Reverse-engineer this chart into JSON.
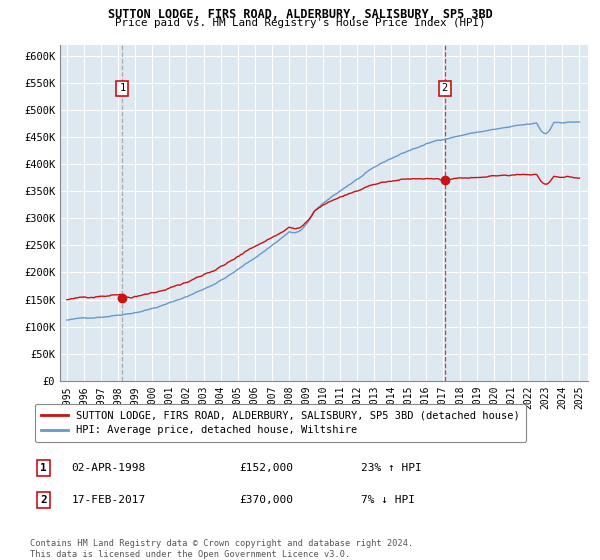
{
  "title": "SUTTON LODGE, FIRS ROAD, ALDERBURY, SALISBURY, SP5 3BD",
  "subtitle": "Price paid vs. HM Land Registry's House Price Index (HPI)",
  "ylim": [
    0,
    620000
  ],
  "yticks": [
    0,
    50000,
    100000,
    150000,
    200000,
    250000,
    300000,
    350000,
    400000,
    450000,
    500000,
    550000,
    600000
  ],
  "ytick_labels": [
    "£0",
    "£50K",
    "£100K",
    "£150K",
    "£200K",
    "£250K",
    "£300K",
    "£350K",
    "£400K",
    "£450K",
    "£500K",
    "£550K",
    "£600K"
  ],
  "hpi_color": "#6699cc",
  "price_color": "#cc1111",
  "marker1_year": 1998.25,
  "marker1_price": 152000,
  "marker2_year": 2017.12,
  "marker2_price": 370000,
  "legend_line1": "SUTTON LODGE, FIRS ROAD, ALDERBURY, SALISBURY, SP5 3BD (detached house)",
  "legend_line2": "HPI: Average price, detached house, Wiltshire",
  "annotation1": "1",
  "annotation2": "2",
  "note1_date": "02-APR-1998",
  "note1_price": "£152,000",
  "note1_hpi": "23% ↑ HPI",
  "note2_date": "17-FEB-2017",
  "note2_price": "£370,000",
  "note2_hpi": "7% ↓ HPI",
  "footer": "Contains HM Land Registry data © Crown copyright and database right 2024.\nThis data is licensed under the Open Government Licence v3.0.",
  "background_color": "#ffffff",
  "plot_bg_color": "#dde8f0",
  "grid_color": "#ffffff"
}
